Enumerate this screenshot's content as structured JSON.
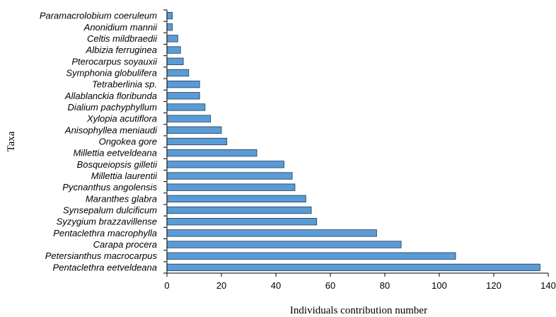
{
  "chart_data": {
    "type": "bar",
    "orientation": "horizontal",
    "xlabel": "Individuals contribution number",
    "ylabel": "Taxa",
    "xlim": [
      0,
      140
    ],
    "xticks": [
      0,
      20,
      40,
      60,
      80,
      100,
      120,
      140
    ],
    "grid": false,
    "legend": "none",
    "bar_color": "#5b9bd5",
    "categories": [
      "Paramacrolobium coeruleum",
      "Anonidium mannii",
      "Celtis mildbraedii",
      "Albizia ferruginea",
      "Pterocarpus soyauxii",
      "Symphonia globulifera",
      "Tetraberlinia sp.",
      "Allablanckia floribunda",
      "Dialium pachyphyllum",
      "Xylopia acutiflora",
      "Anisophyllea meniaudi",
      "Ongokea gore",
      "Millettia eetveldeana",
      "Bosqueiopsis gilletii",
      "Millettia laurentii",
      "Pycnanthus angolensis",
      "Maranthes glabra",
      "Synsepalum dulcificum",
      "Syzygium brazzavillense",
      "Pentaclethra macrophylla",
      "Carapa procera",
      "Petersianthus macrocarpus",
      "Pentaclethra eetveldeana"
    ],
    "values": [
      2,
      2,
      4,
      5,
      6,
      8,
      12,
      12,
      14,
      16,
      20,
      22,
      33,
      43,
      46,
      47,
      51,
      53,
      55,
      77,
      86,
      106,
      137
    ]
  }
}
